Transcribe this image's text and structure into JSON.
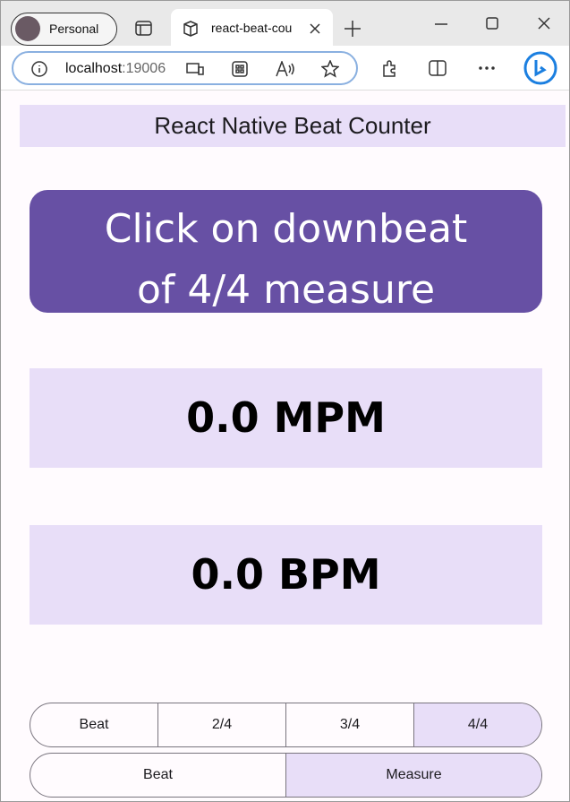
{
  "browser": {
    "profile": "Personal",
    "tab_title": "react-beat-cou",
    "url_host": "localhost",
    "url_port": ":19006"
  },
  "app": {
    "header": "React Native Beat Counter",
    "button": "Click on downbeat of 4/4 measure",
    "mpm": "0.0 MPM",
    "bpm": "0.0 BPM",
    "segments_1": {
      "options": [
        "Beat",
        "2/4",
        "3/4",
        "4/4"
      ],
      "selected": 3
    },
    "segments_2": {
      "options": [
        "Beat",
        "Measure"
      ],
      "selected": 1
    }
  }
}
